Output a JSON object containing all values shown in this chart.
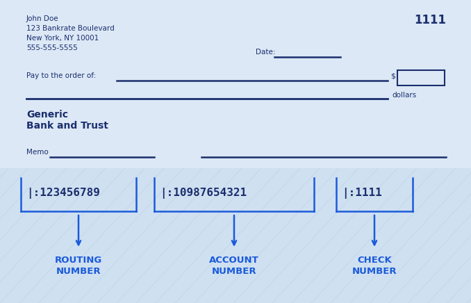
{
  "bg_color": "#dce8f5",
  "bottom_bg": "#cfe0f0",
  "dark_blue": "#1a2e6e",
  "bright_blue": "#1a5adc",
  "line_color": "#1a2e6e",
  "name_line1": "John Doe",
  "name_line2": "123 Bankrate Boulevard",
  "name_line3": "New York, NY 10001",
  "name_line4": "555-555-5555",
  "check_number": "1111",
  "date_label": "Date:",
  "pay_label": "Pay to the order of:",
  "dollar_sign": "$",
  "dollars_label": "dollars",
  "bank_line1": "Generic",
  "bank_line2": "Bank and Trust",
  "memo_label": "Memo",
  "routing_code": "|:123456789",
  "account_code": "|:10987654321",
  "check_code": "|:1111",
  "routing_label1": "ROUTING",
  "routing_label2": "NUMBER",
  "account_label1": "ACCOUNT",
  "account_label2": "NUMBER",
  "check_label1": "CHECK",
  "check_label2": "NUMBER",
  "figw": 6.78,
  "figh": 4.36,
  "dpi": 100
}
